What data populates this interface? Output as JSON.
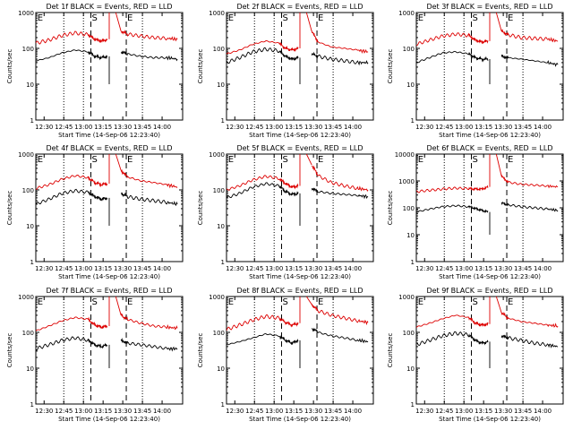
{
  "figure": {
    "ylabel": "Counts/sec",
    "xlabel": "Start Time (14-Sep-06 12:23:40)",
    "x_tick_labels": [
      "12:30",
      "12:45",
      "13:00",
      "13:15",
      "13:30",
      "13:45",
      "14:00"
    ],
    "y_tick_labels": [
      "1",
      "10",
      "100",
      "1000"
    ],
    "marker_labels": [
      "E",
      "S",
      "E"
    ],
    "colors": {
      "events": "#000000",
      "lld": "#dd0000"
    }
  },
  "chart_data": [
    {
      "type": "line",
      "title": "Det 1f BLACK = Events, RED = LLD",
      "xlabel": "Start Time (14-Sep-06 12:23:40)",
      "ylabel": "Counts/sec",
      "x_range_minutes": [
        12.5,
        112
      ],
      "ylim": [
        1,
        1000
      ],
      "y_scale": "log",
      "series": [
        {
          "name": "Events",
          "color": "#000000",
          "x": [
            0,
            10,
            20,
            30,
            40,
            45,
            50,
            55,
            57,
            61,
            65,
            70,
            80,
            90,
            100,
            108
          ],
          "y": [
            45,
            55,
            75,
            90,
            80,
            60,
            55,
            60,
            null,
            null,
            80,
            70,
            60,
            55,
            55,
            50
          ]
        },
        {
          "name": "LLD",
          "color": "#dd0000",
          "x": [
            0,
            10,
            20,
            30,
            40,
            45,
            50,
            55,
            57,
            61,
            65,
            70,
            80,
            90,
            100,
            108
          ],
          "y": [
            140,
            170,
            230,
            270,
            240,
            180,
            160,
            180,
            null,
            null,
            300,
            250,
            220,
            200,
            190,
            180
          ]
        }
      ]
    },
    {
      "type": "line",
      "title": "Det 2f BLACK = Events, RED = LLD",
      "xlabel": "Start Time (14-Sep-06 12:23:40)",
      "ylabel": "Counts/sec",
      "x_range_minutes": [
        12.5,
        112
      ],
      "ylim": [
        1,
        1000
      ],
      "y_scale": "log",
      "series": [
        {
          "name": "Events",
          "color": "#000000",
          "x": [
            0,
            10,
            20,
            30,
            40,
            45,
            50,
            55,
            57,
            61,
            65,
            70,
            80,
            90,
            100,
            108
          ],
          "y": [
            40,
            55,
            80,
            95,
            85,
            60,
            50,
            55,
            null,
            null,
            70,
            60,
            50,
            45,
            40,
            40
          ]
        },
        {
          "name": "LLD",
          "color": "#dd0000",
          "x": [
            0,
            10,
            20,
            30,
            40,
            45,
            50,
            55,
            57,
            61,
            65,
            70,
            80,
            90,
            100,
            108
          ],
          "y": [
            70,
            90,
            130,
            160,
            140,
            100,
            90,
            100,
            null,
            null,
            300,
            150,
            110,
            100,
            90,
            80
          ]
        }
      ]
    },
    {
      "type": "line",
      "title": "Det 3f BLACK = Events, RED = LLD",
      "xlabel": "Start Time (14-Sep-06 12:23:40)",
      "ylabel": "Counts/sec",
      "x_range_minutes": [
        12.5,
        112
      ],
      "ylim": [
        1,
        1000
      ],
      "y_scale": "log",
      "series": [
        {
          "name": "Events",
          "color": "#000000",
          "x": [
            0,
            10,
            20,
            30,
            40,
            45,
            50,
            55,
            57,
            61,
            65,
            70,
            80,
            90,
            100,
            108
          ],
          "y": [
            40,
            55,
            75,
            80,
            70,
            55,
            50,
            50,
            null,
            null,
            60,
            55,
            50,
            45,
            40,
            35
          ]
        },
        {
          "name": "LLD",
          "color": "#dd0000",
          "x": [
            0,
            10,
            20,
            30,
            40,
            45,
            50,
            55,
            57,
            61,
            65,
            70,
            80,
            90,
            100,
            108
          ],
          "y": [
            130,
            170,
            220,
            250,
            230,
            170,
            150,
            160,
            null,
            null,
            300,
            240,
            200,
            190,
            180,
            160
          ]
        }
      ]
    },
    {
      "type": "line",
      "title": "Det 4f BLACK = Events, RED = LLD",
      "xlabel": "Start Time (14-Sep-06 12:23:40)",
      "ylabel": "Counts/sec",
      "x_range_minutes": [
        12.5,
        112
      ],
      "ylim": [
        1,
        1000
      ],
      "y_scale": "log",
      "series": [
        {
          "name": "Events",
          "color": "#000000",
          "x": [
            0,
            10,
            20,
            30,
            40,
            45,
            50,
            55,
            57,
            61,
            65,
            70,
            80,
            90,
            100,
            108
          ],
          "y": [
            40,
            55,
            80,
            95,
            85,
            65,
            55,
            60,
            null,
            null,
            80,
            65,
            55,
            50,
            45,
            40
          ]
        },
        {
          "name": "LLD",
          "color": "#dd0000",
          "x": [
            0,
            10,
            20,
            30,
            40,
            45,
            50,
            55,
            57,
            61,
            65,
            70,
            80,
            90,
            100,
            108
          ],
          "y": [
            110,
            140,
            200,
            250,
            220,
            160,
            140,
            150,
            null,
            null,
            350,
            230,
            180,
            160,
            140,
            120
          ]
        }
      ]
    },
    {
      "type": "line",
      "title": "Det 5f BLACK = Events, RED = LLD",
      "xlabel": "Start Time (14-Sep-06 12:23:40)",
      "ylabel": "Counts/sec",
      "x_range_minutes": [
        12.5,
        112
      ],
      "ylim": [
        1,
        1000
      ],
      "y_scale": "log",
      "series": [
        {
          "name": "Events",
          "color": "#000000",
          "x": [
            0,
            10,
            20,
            30,
            40,
            45,
            50,
            55,
            57,
            61,
            65,
            70,
            80,
            90,
            100,
            108
          ],
          "y": [
            60,
            80,
            120,
            150,
            130,
            90,
            75,
            80,
            null,
            null,
            110,
            90,
            80,
            75,
            70,
            65
          ]
        },
        {
          "name": "LLD",
          "color": "#dd0000",
          "x": [
            0,
            10,
            20,
            30,
            40,
            45,
            50,
            55,
            57,
            61,
            65,
            70,
            80,
            90,
            100,
            108
          ],
          "y": [
            100,
            130,
            190,
            240,
            210,
            150,
            120,
            130,
            null,
            null,
            500,
            250,
            160,
            130,
            110,
            100
          ]
        }
      ]
    },
    {
      "type": "line",
      "title": "Det 6f BLACK = Events, RED = LLD",
      "xlabel": "Start Time (14-Sep-06 12:23:40)",
      "ylabel": "Counts/sec",
      "x_range_minutes": [
        12.5,
        112
      ],
      "ylim": [
        1,
        10000
      ],
      "y_scale": "log",
      "series": [
        {
          "name": "Events",
          "color": "#000000",
          "x": [
            0,
            10,
            20,
            30,
            40,
            45,
            50,
            55,
            57,
            61,
            65,
            70,
            80,
            90,
            100,
            108
          ],
          "y": [
            70,
            90,
            110,
            120,
            110,
            95,
            80,
            70,
            null,
            null,
            150,
            130,
            110,
            100,
            90,
            80
          ]
        },
        {
          "name": "LLD",
          "color": "#dd0000",
          "x": [
            0,
            10,
            20,
            30,
            40,
            45,
            50,
            55,
            57,
            61,
            65,
            70,
            80,
            90,
            100,
            108
          ],
          "y": [
            400,
            450,
            500,
            540,
            520,
            500,
            500,
            600,
            null,
            null,
            1500,
            900,
            750,
            700,
            650,
            600
          ]
        }
      ]
    },
    {
      "type": "line",
      "title": "Det 7f BLACK = Events, RED = LLD",
      "xlabel": "Start Time (14-Sep-06 12:23:40)",
      "ylabel": "Counts/sec",
      "x_range_minutes": [
        12.5,
        112
      ],
      "ylim": [
        1,
        1000
      ],
      "y_scale": "log",
      "series": [
        {
          "name": "Events",
          "color": "#000000",
          "x": [
            0,
            10,
            20,
            30,
            40,
            45,
            50,
            55,
            57,
            61,
            65,
            70,
            80,
            90,
            100,
            108
          ],
          "y": [
            35,
            45,
            60,
            70,
            60,
            45,
            40,
            45,
            null,
            null,
            60,
            50,
            45,
            40,
            35,
            35
          ]
        },
        {
          "name": "LLD",
          "color": "#dd0000",
          "x": [
            0,
            10,
            20,
            30,
            40,
            45,
            50,
            55,
            57,
            61,
            65,
            70,
            80,
            90,
            100,
            108
          ],
          "y": [
            110,
            150,
            210,
            260,
            230,
            160,
            140,
            150,
            null,
            null,
            300,
            230,
            180,
            150,
            140,
            130
          ]
        }
      ]
    },
    {
      "type": "line",
      "title": "Det 8f BLACK = Events, RED = LLD",
      "xlabel": "Start Time (14-Sep-06 12:23:40)",
      "ylabel": "Counts/sec",
      "x_range_minutes": [
        12.5,
        112
      ],
      "ylim": [
        1,
        1000
      ],
      "y_scale": "log",
      "series": [
        {
          "name": "Events",
          "color": "#000000",
          "x": [
            0,
            10,
            20,
            30,
            40,
            45,
            50,
            55,
            57,
            61,
            65,
            70,
            80,
            90,
            100,
            108
          ],
          "y": [
            45,
            55,
            70,
            90,
            80,
            60,
            50,
            60,
            null,
            null,
            130,
            100,
            80,
            70,
            60,
            55
          ]
        },
        {
          "name": "LLD",
          "color": "#dd0000",
          "x": [
            0,
            10,
            20,
            30,
            40,
            45,
            50,
            55,
            57,
            61,
            65,
            70,
            80,
            90,
            100,
            108
          ],
          "y": [
            120,
            160,
            220,
            280,
            250,
            190,
            160,
            180,
            null,
            null,
            600,
            400,
            300,
            250,
            210,
            190
          ]
        }
      ]
    },
    {
      "type": "line",
      "title": "Det 9f BLACK = Events, RED = LLD",
      "xlabel": "Start Time (14-Sep-06 12:23:40)",
      "ylabel": "Counts/sec",
      "x_range_minutes": [
        12.5,
        112
      ],
      "ylim": [
        1,
        1000
      ],
      "y_scale": "log",
      "series": [
        {
          "name": "Events",
          "color": "#000000",
          "x": [
            0,
            10,
            20,
            30,
            40,
            45,
            50,
            55,
            57,
            61,
            65,
            70,
            80,
            90,
            100,
            108
          ],
          "y": [
            45,
            60,
            80,
            95,
            85,
            60,
            50,
            55,
            null,
            null,
            80,
            70,
            60,
            50,
            45,
            40
          ]
        },
        {
          "name": "LLD",
          "color": "#dd0000",
          "x": [
            0,
            10,
            20,
            30,
            40,
            45,
            50,
            55,
            57,
            61,
            65,
            70,
            80,
            90,
            100,
            108
          ],
          "y": [
            140,
            180,
            240,
            300,
            260,
            180,
            160,
            170,
            null,
            null,
            350,
            250,
            200,
            180,
            160,
            150
          ]
        }
      ]
    }
  ]
}
